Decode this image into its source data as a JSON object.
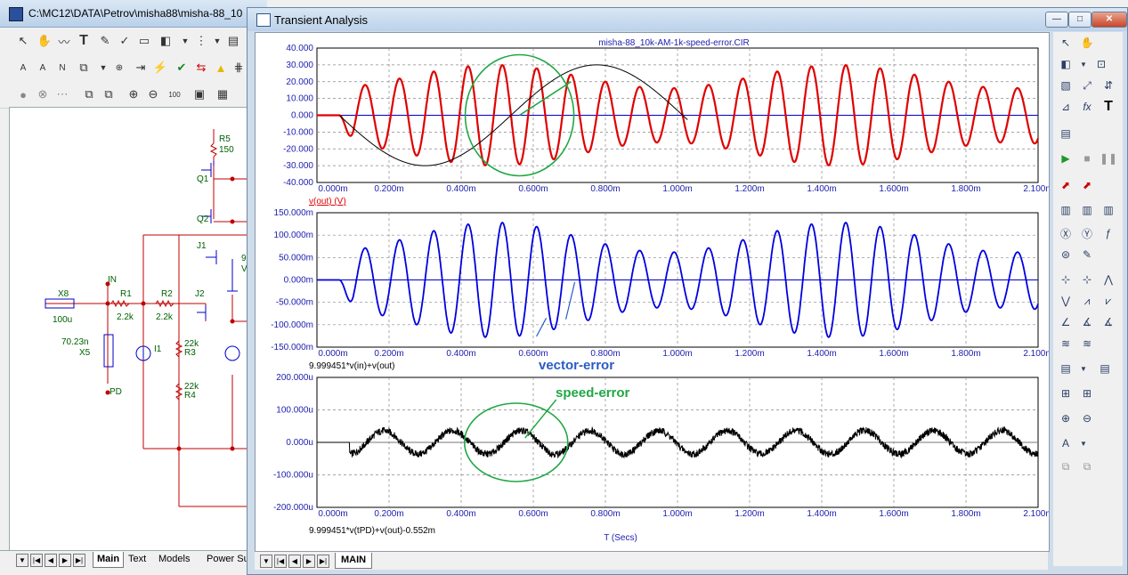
{
  "back_window": {
    "title": "C:\\MC12\\DATA\\Petrov\\misha88\\misha-88_10",
    "tabs": [
      "Main",
      "Text",
      "Models",
      "Power Su"
    ],
    "active_tab": "Main",
    "schematic_labels": {
      "r5": "R5",
      "r5_val": "150",
      "q1": "Q1",
      "q2": "Q2",
      "j1": "J1",
      "j2": "J2",
      "in": "IN",
      "x8": "X8",
      "x8_val": "100u",
      "r1": "R1",
      "r1_val": "2.2k",
      "r2": "R2",
      "r2_val": "2.2k",
      "r3": "R3",
      "r3_val": "22k",
      "r4": "R4",
      "r4_val": "22k",
      "i1": "I1",
      "x5_val": "70.23n",
      "x5": "X5",
      "pd": "PD",
      "v_lbl": "V",
      "nine": "9"
    }
  },
  "front_window": {
    "title": "Transient Analysis",
    "tab": "MAIN",
    "buttons": {
      "minimize": "—",
      "maximize": "□",
      "close": "✕"
    }
  },
  "chart_data": [
    {
      "type": "line",
      "title": "misha-88_10k-AM-1k-speed-error.CIR",
      "xlabel": "",
      "ylabel": "v(out) (V)",
      "xlim": [
        0,
        0.0021
      ],
      "ylim": [
        -40,
        40
      ],
      "x_ticks": [
        "0.000m",
        "0.200m",
        "0.400m",
        "0.600m",
        "0.800m",
        "1.000m",
        "1.200m",
        "1.400m",
        "1.600m",
        "1.800m",
        "2.100m"
      ],
      "y_ticks": [
        "40.000",
        "30.000",
        "20.000",
        "10.000",
        "0.000",
        "-10.000",
        "-20.000",
        "-30.000",
        "-40.000"
      ],
      "series": [
        {
          "name": "v(out) (V)",
          "color": "#e00000",
          "model": "am",
          "amp": 23,
          "mod": 0.3,
          "carrier_hz": 10000,
          "mod_hz": 1000,
          "start": 6.5e-05
        },
        {
          "color": "#000000",
          "model": "slow_sine",
          "amp": 30,
          "mod_hz": 1000,
          "start": 6.5e-05,
          "end": 0.00108
        }
      ],
      "annotations": [
        {
          "shape": "circle",
          "color": "#1fa845",
          "center_x": 0.00059,
          "center_y": 0,
          "arrow_to_x": 0.00074,
          "arrow_to_y": 20
        }
      ]
    },
    {
      "type": "line",
      "xlabel": "",
      "ylabel": "9.999451*v(in)+v(out)",
      "xlim": [
        0,
        0.0021
      ],
      "ylim": [
        -0.15,
        0.15
      ],
      "x_ticks": [
        "0.000m",
        "0.200m",
        "0.400m",
        "0.600m",
        "0.800m",
        "1.000m",
        "1.200m",
        "1.400m",
        "1.600m",
        "1.800m",
        "2.100m"
      ],
      "y_ticks": [
        "150.000m",
        "100.000m",
        "50.000m",
        "0.000m",
        "-50.000m",
        "-100.000m",
        "-150.000m"
      ],
      "series": [
        {
          "name": "9.999451*v(in)+v(out)",
          "color": "#0000e0",
          "model": "am",
          "amp": 0.095,
          "mod": 0.35,
          "carrier_hz": 10000,
          "mod_hz": 1000,
          "start": 6.5e-05
        }
      ],
      "annotations": [
        {
          "text": "vector-error",
          "color": "#2a5cc4",
          "arrow_from_x": 0.00066,
          "arrow_to_x": 0.00059
        }
      ]
    },
    {
      "type": "line",
      "xlabel": "T (Secs)",
      "ylabel": "9.999451*v(tPD)+v(out)-0.552m",
      "xlim": [
        0,
        0.0021
      ],
      "ylim": [
        -0.0002,
        0.0002
      ],
      "x_ticks": [
        "0.000m",
        "0.200m",
        "0.400m",
        "0.600m",
        "0.800m",
        "1.000m",
        "1.200m",
        "1.400m",
        "1.600m",
        "1.800m",
        "2.100m"
      ],
      "y_ticks": [
        "200.000u",
        "100.000u",
        "0.000u",
        "-100.000u",
        "-200.000u"
      ],
      "series": [
        {
          "name": "9.999451*v(tPD)+v(out)-0.552m",
          "color": "#000000",
          "model": "noisy",
          "amp": 4e-05,
          "mod_hz": 5000,
          "start": 9.5e-05
        }
      ],
      "annotations": [
        {
          "text": "speed-error",
          "color": "#1fa845",
          "shape": "circle",
          "center_x": 0.00058,
          "center_y": 0
        }
      ]
    }
  ]
}
